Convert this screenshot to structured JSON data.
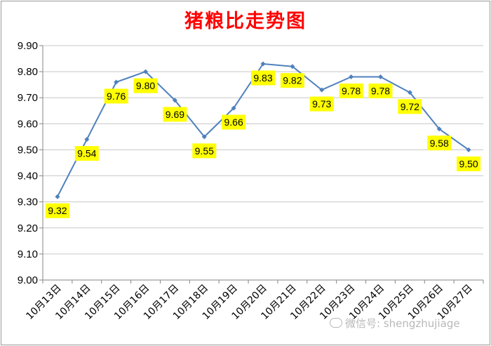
{
  "chart_data": {
    "type": "line",
    "title": "猪粮比走势图",
    "categories": [
      "10月13日",
      "10月14日",
      "10月15日",
      "10月16日",
      "10月17日",
      "10月18日",
      "10月19日",
      "10月20日",
      "10月21日",
      "10月22日",
      "10月23日",
      "10月24日",
      "10月25日",
      "10月26日",
      "10月27日"
    ],
    "values": [
      9.32,
      9.54,
      9.76,
      9.8,
      9.69,
      9.55,
      9.66,
      9.83,
      9.82,
      9.73,
      9.78,
      9.78,
      9.72,
      9.58,
      9.5
    ],
    "data_labels": [
      "9.32",
      "9.54",
      "9.76",
      "9.80",
      "9.69",
      "9.55",
      "9.66",
      "9.83",
      "9.82",
      "9.73",
      "9.78",
      "9.78",
      "9.72",
      "9.58",
      "9.50"
    ],
    "ylim": [
      9.0,
      9.9
    ],
    "yticks": [
      "9.00",
      "9.10",
      "9.20",
      "9.30",
      "9.40",
      "9.50",
      "9.60",
      "9.70",
      "9.80",
      "9.90"
    ],
    "grid": true,
    "legend": "none",
    "xlabel": "",
    "ylabel": "",
    "colors": {
      "line": "#4f81bd",
      "label_bg": "#ffff00",
      "title": "#ff0000",
      "grid": "#c8c8c8"
    }
  },
  "watermark": {
    "text": "微信号: shengzhujiage"
  }
}
